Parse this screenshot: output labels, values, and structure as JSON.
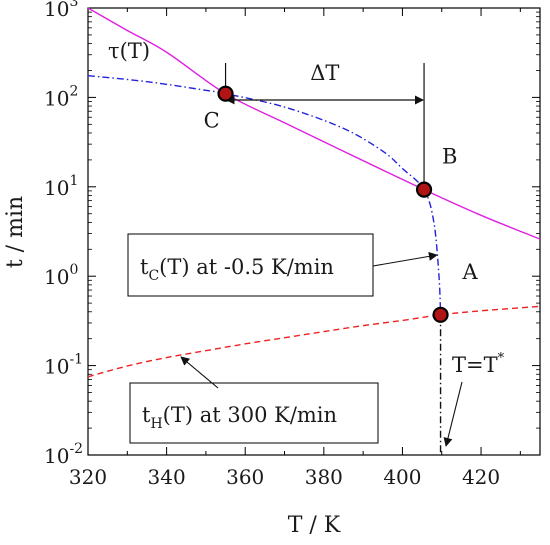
{
  "chart_data": {
    "type": "line",
    "title": "",
    "xlabel": "T / K",
    "ylabel": "t / min",
    "xlim": [
      320,
      435
    ],
    "ylim": [
      0.01,
      1000
    ],
    "yscale": "log",
    "grid": false,
    "x_ticks": [
      320,
      340,
      360,
      380,
      400,
      420
    ],
    "x_tick_labels": [
      "320",
      "340",
      "360",
      "380",
      "400",
      "420"
    ],
    "y_ticks": [
      0.01,
      0.1,
      1,
      10,
      100,
      1000
    ],
    "y_tick_labels": [
      {
        "base": "10",
        "exp": "-2"
      },
      {
        "base": "10",
        "exp": "-1"
      },
      {
        "base": "10",
        "exp": "0"
      },
      {
        "base": "10",
        "exp": "1"
      },
      {
        "base": "10",
        "exp": "2"
      },
      {
        "base": "10",
        "exp": "3"
      }
    ],
    "series": [
      {
        "label": "τ(T)",
        "color": "#e020e0",
        "style": "solid",
        "x": [
          320,
          330,
          340,
          355,
          370,
          385,
          405.5,
          420,
          435
        ],
        "y": [
          1000,
          560,
          320,
          110,
          52,
          25,
          9.3,
          4.8,
          2.6
        ]
      },
      {
        "label": "tC(T) at -0.5 K/min",
        "color": "#2222dd",
        "style": "dashdot",
        "x": [
          320,
          335,
          350,
          355,
          370,
          385,
          395,
          400,
          405.5,
          408,
          409.3,
          409.7
        ],
        "y": [
          175,
          150,
          120,
          110,
          78,
          45,
          25,
          16,
          9.3,
          4.0,
          1.0,
          0.37
        ]
      },
      {
        "label": "tH(T) at 300 K/min",
        "color": "#ee2222",
        "style": "dashed",
        "x": [
          320,
          330,
          340,
          350,
          360,
          370,
          380,
          390,
          400,
          409.7,
          420,
          435
        ],
        "y": [
          0.075,
          0.099,
          0.123,
          0.147,
          0.175,
          0.205,
          0.24,
          0.28,
          0.32,
          0.37,
          0.41,
          0.46
        ]
      }
    ],
    "points": [
      {
        "label": "C",
        "x": 355,
        "y": 110
      },
      {
        "label": "B",
        "x": 405.5,
        "y": 9.3
      },
      {
        "label": "A",
        "x": 409.7,
        "y": 0.37
      }
    ],
    "vertical_line": {
      "label": "T=T*",
      "x": 409.7
    },
    "delta_label": "ΔT",
    "delta_range": [
      355,
      405.5
    ],
    "annotations": {
      "tau": "τ(T)",
      "tc": {
        "main": "t",
        "sub": "C",
        "rest": "(T) at -0.5 K/min"
      },
      "th": {
        "main": "t",
        "sub": "H",
        "rest": "(T) at 300 K/min"
      },
      "tstar": {
        "main": "T=T",
        "sup": "*"
      }
    }
  }
}
